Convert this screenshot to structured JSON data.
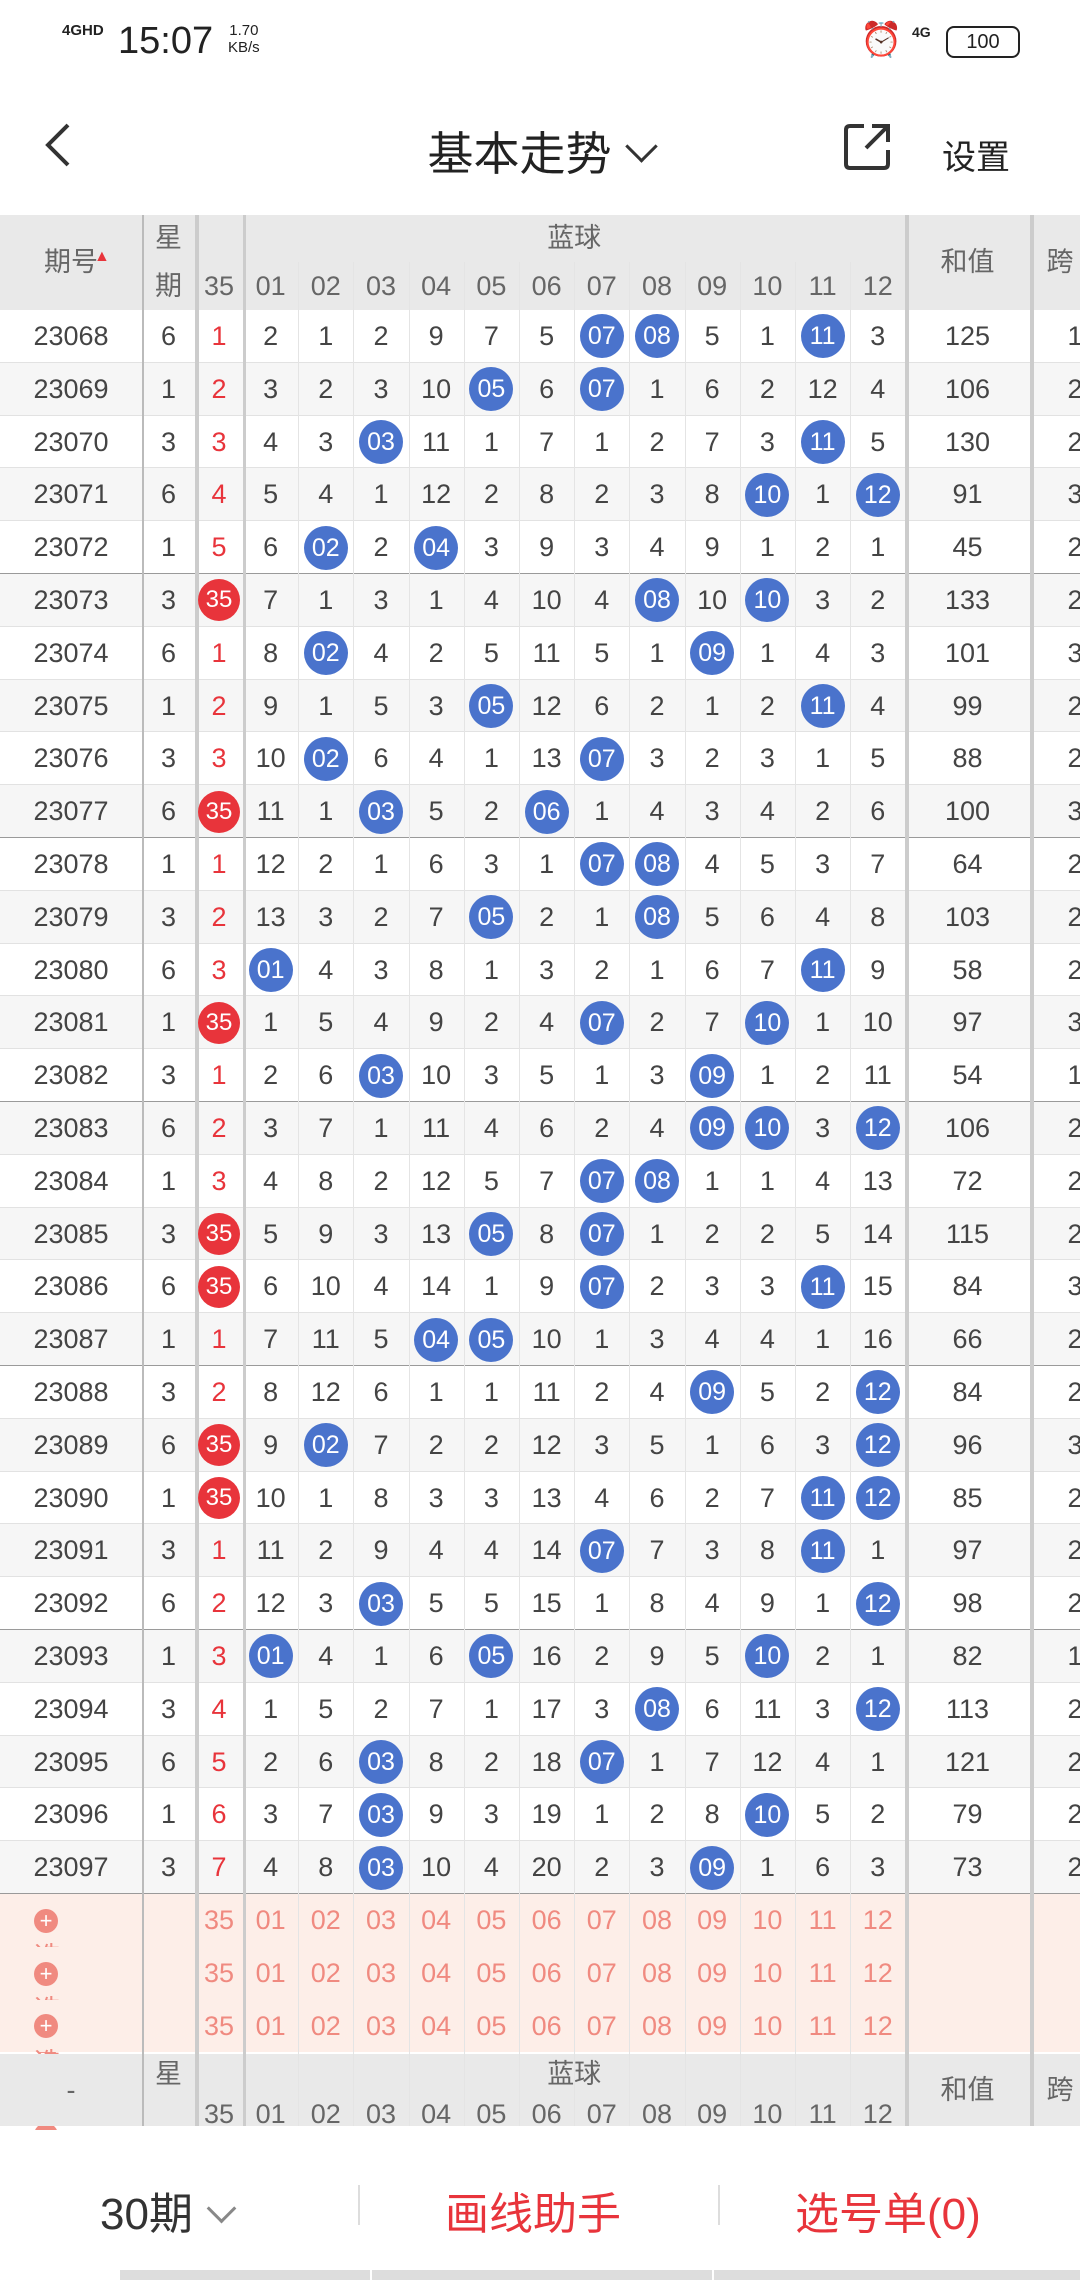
{
  "status": {
    "signal": "4GHD",
    "time": "15:07",
    "speed_value": "1.70",
    "speed_unit": "KB/s",
    "net": "4G",
    "battery": "100"
  },
  "header": {
    "title": "基本走势",
    "settings": "设置"
  },
  "columns": {
    "period": "期号",
    "week": "星",
    "week2": "期",
    "red": "35",
    "blue_title": "蓝球",
    "blue": [
      "01",
      "02",
      "03",
      "04",
      "05",
      "06",
      "07",
      "08",
      "09",
      "10",
      "11",
      "12"
    ],
    "sum": "和值",
    "span": "跨"
  },
  "rows": [
    {
      "p": "23068",
      "w": "6",
      "r": "1",
      "rh": false,
      "b": [
        "2",
        "1",
        "2",
        "9",
        "7",
        "5",
        "07",
        "08",
        "5",
        "1",
        "11",
        "3"
      ],
      "s": "125",
      "k": "1"
    },
    {
      "p": "23069",
      "w": "1",
      "r": "2",
      "rh": false,
      "b": [
        "3",
        "2",
        "3",
        "10",
        "05",
        "6",
        "07",
        "1",
        "6",
        "2",
        "12",
        "4"
      ],
      "s": "106",
      "k": "2"
    },
    {
      "p": "23070",
      "w": "3",
      "r": "3",
      "rh": false,
      "b": [
        "4",
        "3",
        "03",
        "11",
        "1",
        "7",
        "1",
        "2",
        "7",
        "3",
        "11",
        "5"
      ],
      "s": "130",
      "k": "2"
    },
    {
      "p": "23071",
      "w": "6",
      "r": "4",
      "rh": false,
      "b": [
        "5",
        "4",
        "1",
        "12",
        "2",
        "8",
        "2",
        "3",
        "8",
        "10",
        "1",
        "12"
      ],
      "s": "91",
      "k": "3"
    },
    {
      "p": "23072",
      "w": "1",
      "r": "5",
      "rh": false,
      "b": [
        "6",
        "02",
        "2",
        "04",
        "3",
        "9",
        "3",
        "4",
        "9",
        "1",
        "2",
        "1"
      ],
      "s": "45",
      "k": "2"
    },
    {
      "p": "23073",
      "w": "3",
      "r": "35",
      "rh": true,
      "b": [
        "7",
        "1",
        "3",
        "1",
        "4",
        "10",
        "4",
        "08",
        "10",
        "10",
        "3",
        "2"
      ],
      "s": "133",
      "k": "2"
    },
    {
      "p": "23074",
      "w": "6",
      "r": "1",
      "rh": false,
      "b": [
        "8",
        "02",
        "4",
        "2",
        "5",
        "11",
        "5",
        "1",
        "09",
        "1",
        "4",
        "3"
      ],
      "s": "101",
      "k": "3"
    },
    {
      "p": "23075",
      "w": "1",
      "r": "2",
      "rh": false,
      "b": [
        "9",
        "1",
        "5",
        "3",
        "05",
        "12",
        "6",
        "2",
        "1",
        "2",
        "11",
        "4"
      ],
      "s": "99",
      "k": "2"
    },
    {
      "p": "23076",
      "w": "3",
      "r": "3",
      "rh": false,
      "b": [
        "10",
        "02",
        "6",
        "4",
        "1",
        "13",
        "07",
        "3",
        "2",
        "3",
        "1",
        "5"
      ],
      "s": "88",
      "k": "2"
    },
    {
      "p": "23077",
      "w": "6",
      "r": "35",
      "rh": true,
      "b": [
        "11",
        "1",
        "03",
        "5",
        "2",
        "06",
        "1",
        "4",
        "3",
        "4",
        "2",
        "6"
      ],
      "s": "100",
      "k": "3"
    },
    {
      "p": "23078",
      "w": "1",
      "r": "1",
      "rh": false,
      "b": [
        "12",
        "2",
        "1",
        "6",
        "3",
        "1",
        "07",
        "08",
        "4",
        "5",
        "3",
        "7"
      ],
      "s": "64",
      "k": "2"
    },
    {
      "p": "23079",
      "w": "3",
      "r": "2",
      "rh": false,
      "b": [
        "13",
        "3",
        "2",
        "7",
        "05",
        "2",
        "1",
        "08",
        "5",
        "6",
        "4",
        "8"
      ],
      "s": "103",
      "k": "2"
    },
    {
      "p": "23080",
      "w": "6",
      "r": "3",
      "rh": false,
      "b": [
        "01",
        "4",
        "3",
        "8",
        "1",
        "3",
        "2",
        "1",
        "6",
        "7",
        "11",
        "9"
      ],
      "s": "58",
      "k": "2"
    },
    {
      "p": "23081",
      "w": "1",
      "r": "35",
      "rh": true,
      "b": [
        "1",
        "5",
        "4",
        "9",
        "2",
        "4",
        "07",
        "2",
        "7",
        "10",
        "1",
        "10"
      ],
      "s": "97",
      "k": "3"
    },
    {
      "p": "23082",
      "w": "3",
      "r": "1",
      "rh": false,
      "b": [
        "2",
        "6",
        "03",
        "10",
        "3",
        "5",
        "1",
        "3",
        "09",
        "1",
        "2",
        "11"
      ],
      "s": "54",
      "k": "1"
    },
    {
      "p": "23083",
      "w": "6",
      "r": "2",
      "rh": false,
      "b": [
        "3",
        "7",
        "1",
        "11",
        "4",
        "6",
        "2",
        "4",
        "09",
        "10",
        "3",
        "12"
      ],
      "s": "106",
      "k": "2"
    },
    {
      "p": "23084",
      "w": "1",
      "r": "3",
      "rh": false,
      "b": [
        "4",
        "8",
        "2",
        "12",
        "5",
        "7",
        "07",
        "08",
        "1",
        "1",
        "4",
        "13"
      ],
      "s": "72",
      "k": "2"
    },
    {
      "p": "23085",
      "w": "3",
      "r": "35",
      "rh": true,
      "b": [
        "5",
        "9",
        "3",
        "13",
        "05",
        "8",
        "07",
        "1",
        "2",
        "2",
        "5",
        "14"
      ],
      "s": "115",
      "k": "2"
    },
    {
      "p": "23086",
      "w": "6",
      "r": "35",
      "rh": true,
      "b": [
        "6",
        "10",
        "4",
        "14",
        "1",
        "9",
        "07",
        "2",
        "3",
        "3",
        "11",
        "15"
      ],
      "s": "84",
      "k": "3"
    },
    {
      "p": "23087",
      "w": "1",
      "r": "1",
      "rh": false,
      "b": [
        "7",
        "11",
        "5",
        "04",
        "05",
        "10",
        "1",
        "3",
        "4",
        "4",
        "1",
        "16"
      ],
      "s": "66",
      "k": "2"
    },
    {
      "p": "23088",
      "w": "3",
      "r": "2",
      "rh": false,
      "b": [
        "8",
        "12",
        "6",
        "1",
        "1",
        "11",
        "2",
        "4",
        "09",
        "5",
        "2",
        "12"
      ],
      "s": "84",
      "k": "2"
    },
    {
      "p": "23089",
      "w": "6",
      "r": "35",
      "rh": true,
      "b": [
        "9",
        "02",
        "7",
        "2",
        "2",
        "12",
        "3",
        "5",
        "1",
        "6",
        "3",
        "12"
      ],
      "s": "96",
      "k": "3"
    },
    {
      "p": "23090",
      "w": "1",
      "r": "35",
      "rh": true,
      "b": [
        "10",
        "1",
        "8",
        "3",
        "3",
        "13",
        "4",
        "6",
        "2",
        "7",
        "11",
        "12"
      ],
      "s": "85",
      "k": "2"
    },
    {
      "p": "23091",
      "w": "3",
      "r": "1",
      "rh": false,
      "b": [
        "11",
        "2",
        "9",
        "4",
        "4",
        "14",
        "07",
        "7",
        "3",
        "8",
        "11",
        "1"
      ],
      "s": "97",
      "k": "2"
    },
    {
      "p": "23092",
      "w": "6",
      "r": "2",
      "rh": false,
      "b": [
        "12",
        "3",
        "03",
        "5",
        "5",
        "15",
        "1",
        "8",
        "4",
        "9",
        "1",
        "12"
      ],
      "s": "98",
      "k": "2"
    },
    {
      "p": "23093",
      "w": "1",
      "r": "3",
      "rh": false,
      "b": [
        "01",
        "4",
        "1",
        "6",
        "05",
        "16",
        "2",
        "9",
        "5",
        "10",
        "2",
        "1"
      ],
      "s": "82",
      "k": "1"
    },
    {
      "p": "23094",
      "w": "3",
      "r": "4",
      "rh": false,
      "b": [
        "1",
        "5",
        "2",
        "7",
        "1",
        "17",
        "3",
        "08",
        "6",
        "11",
        "3",
        "12"
      ],
      "s": "113",
      "k": "2"
    },
    {
      "p": "23095",
      "w": "6",
      "r": "5",
      "rh": false,
      "b": [
        "2",
        "6",
        "03",
        "8",
        "2",
        "18",
        "07",
        "1",
        "7",
        "12",
        "4",
        "1"
      ],
      "s": "121",
      "k": "2"
    },
    {
      "p": "23096",
      "w": "1",
      "r": "6",
      "rh": false,
      "b": [
        "3",
        "7",
        "03",
        "9",
        "3",
        "19",
        "1",
        "2",
        "8",
        "10",
        "5",
        "2"
      ],
      "s": "79",
      "k": "2"
    },
    {
      "p": "23097",
      "w": "3",
      "r": "7",
      "rh": false,
      "b": [
        "4",
        "8",
        "03",
        "10",
        "4",
        "20",
        "2",
        "3",
        "09",
        "1",
        "6",
        "3"
      ],
      "s": "73",
      "k": "2"
    }
  ],
  "select_rows": {
    "label": "选号",
    "count": 3
  },
  "footer_header": {
    "period": "-"
  },
  "bottom": {
    "period": "30期",
    "draw": "画线助手",
    "sel": "选号单(0)"
  },
  "colors": {
    "red_ball": "#e8343b",
    "blue_ball": "#4a73cc",
    "select_text": "#f08a80"
  }
}
